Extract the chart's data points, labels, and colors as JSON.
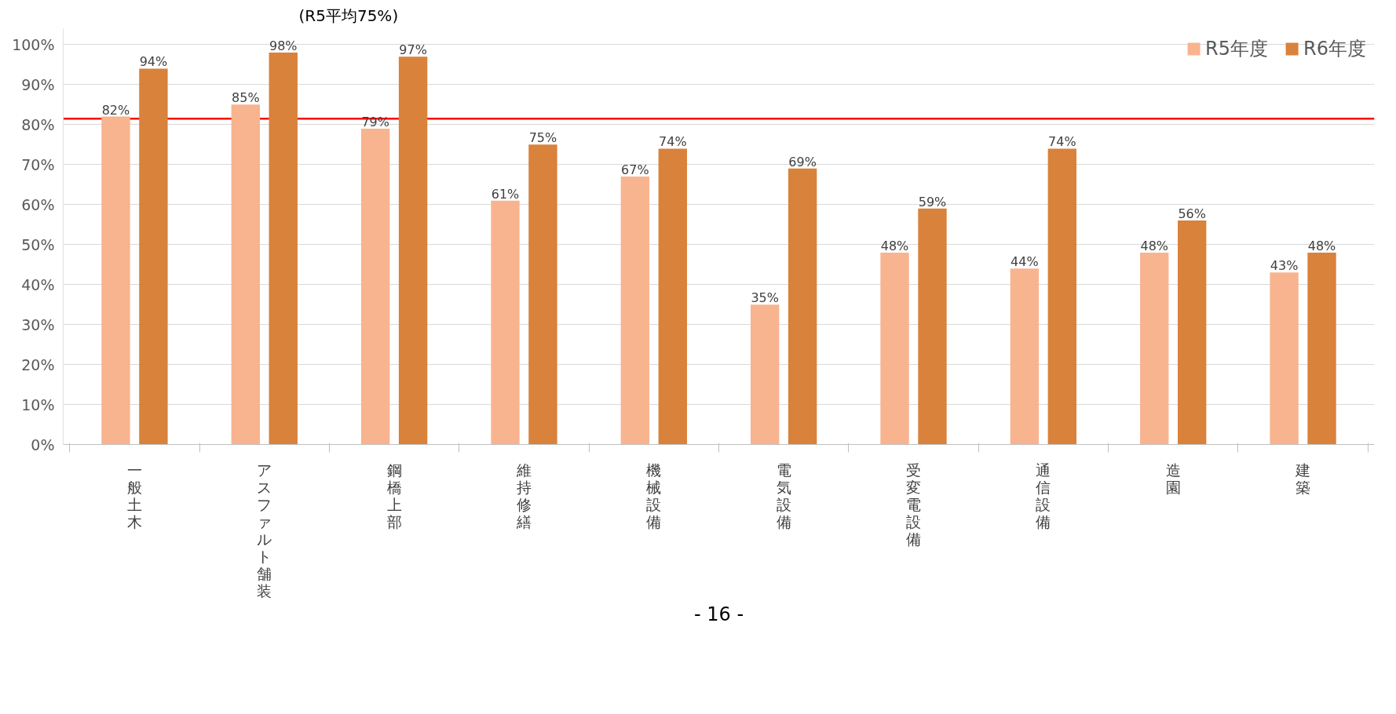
{
  "chart_data": {
    "type": "bar",
    "categories": [
      "一般土木",
      "アスファルト舗装",
      "鋼橋上部",
      "維持修繕",
      "機械設備",
      "電気設備",
      "受変電設備",
      "通信設備",
      "造園",
      "建築"
    ],
    "series": [
      {
        "name": "R5年度",
        "color": "#f8b48f",
        "values": [
          82,
          85,
          79,
          61,
          67,
          35,
          48,
          44,
          48,
          43
        ],
        "value_labels": [
          "82%",
          "85%",
          "79%",
          "61%",
          "67%",
          "35%",
          "48%",
          "44%",
          "48%",
          "43%"
        ]
      },
      {
        "name": "R6年度",
        "color": "#d9823b",
        "values": [
          94,
          98,
          97,
          75,
          74,
          69,
          59,
          74,
          56,
          48
        ],
        "value_labels": [
          "94%",
          "98%",
          "97%",
          "75%",
          "74%",
          "69%",
          "59%",
          "74%",
          "56%",
          "48%"
        ]
      }
    ],
    "ylim": [
      0,
      104
    ],
    "yticks": [
      {
        "value": 0,
        "label": "0%"
      },
      {
        "value": 10,
        "label": "10%"
      },
      {
        "value": 20,
        "label": "20%"
      },
      {
        "value": 30,
        "label": "30%"
      },
      {
        "value": 40,
        "label": "40%"
      },
      {
        "value": 50,
        "label": "50%"
      },
      {
        "value": 60,
        "label": "60%"
      },
      {
        "value": 70,
        "label": "70%"
      },
      {
        "value": 80,
        "label": "80%"
      },
      {
        "value": 90,
        "label": "90%"
      },
      {
        "value": 100,
        "label": "100%"
      }
    ],
    "grid": "y",
    "legend": "top right",
    "ref_lines": [
      {
        "axis": "y",
        "value": 81.5,
        "color": "#ff0000"
      }
    ],
    "annotations": [
      "(R5平均75%)",
      "- 16 -"
    ]
  }
}
